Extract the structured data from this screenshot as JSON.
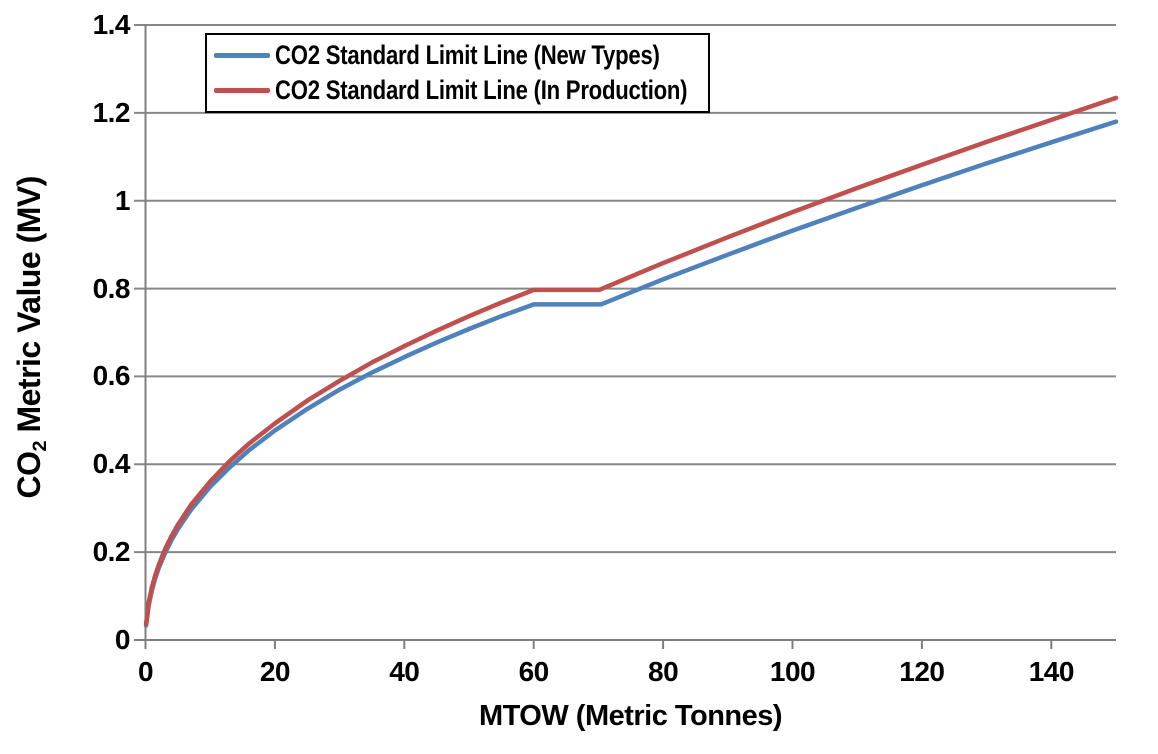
{
  "axis": {
    "xlabel": "MTOW (Metric Tonnes)",
    "ylabel_prefix": "CO",
    "ylabel_sub": "2",
    "ylabel_rest": " Metric Value (MV)"
  },
  "colors": {
    "background": "#FFFFFF",
    "grid": "#878787",
    "axis_line": "#7F7F7F",
    "text": "#000000",
    "legend_border": "#000000",
    "series_new_types": "#4F81BD",
    "series_in_production": "#C0504D"
  },
  "chart_data": {
    "type": "line",
    "title": "",
    "xlabel": "MTOW (Metric Tonnes)",
    "ylabel": "CO2 Metric Value (MV)",
    "xlim": [
      0,
      150
    ],
    "ylim": [
      0,
      1.4
    ],
    "grid": true,
    "legend_position": "top-left",
    "x_ticks": [
      0,
      20,
      40,
      60,
      80,
      100,
      120,
      140
    ],
    "x_tick_labels": [
      "0",
      "20",
      "40",
      "60",
      "80",
      "100",
      "120",
      "140"
    ],
    "y_ticks": [
      0,
      0.2,
      0.4,
      0.6,
      0.8,
      1,
      1.2,
      1.4
    ],
    "y_tick_labels": [
      "0",
      "0.2",
      "0.4",
      "0.6",
      "0.8",
      "1",
      "1.2",
      "1.4"
    ],
    "series": [
      {
        "id": "new-types",
        "name": "CO2 Standard Limit Line (New Types)",
        "color": "#4F81BD",
        "x": [
          0.1,
          0.5,
          1,
          1.5,
          2,
          3,
          4,
          5,
          7,
          10,
          13,
          16,
          20,
          25,
          30,
          35,
          40,
          45,
          50,
          55,
          60,
          70.395,
          80,
          90,
          100,
          110,
          120,
          130,
          140,
          150
        ],
        "y": [
          0.033,
          0.079,
          0.114,
          0.14,
          0.162,
          0.197,
          0.227,
          0.252,
          0.296,
          0.349,
          0.393,
          0.432,
          0.477,
          0.526,
          0.57,
          0.609,
          0.644,
          0.677,
          0.708,
          0.737,
          0.764,
          0.764,
          0.821,
          0.877,
          0.932,
          0.984,
          1.035,
          1.085,
          1.133,
          1.18
        ]
      },
      {
        "id": "in-production",
        "name": "CO2 Standard Limit Line (In Production)",
        "color": "#C0504D",
        "x": [
          0.1,
          0.5,
          1,
          1.5,
          2,
          3,
          4,
          5,
          7,
          10,
          13,
          16,
          20,
          25,
          30,
          35,
          40,
          45,
          50,
          55,
          60,
          70.107,
          80,
          90,
          100,
          110,
          120,
          130,
          140,
          150
        ],
        "y": [
          0.037,
          0.085,
          0.121,
          0.147,
          0.169,
          0.206,
          0.236,
          0.262,
          0.307,
          0.361,
          0.407,
          0.447,
          0.493,
          0.545,
          0.59,
          0.632,
          0.669,
          0.704,
          0.737,
          0.768,
          0.797,
          0.797,
          0.858,
          0.917,
          0.974,
          1.029,
          1.082,
          1.134,
          1.184,
          1.234
        ]
      }
    ]
  }
}
